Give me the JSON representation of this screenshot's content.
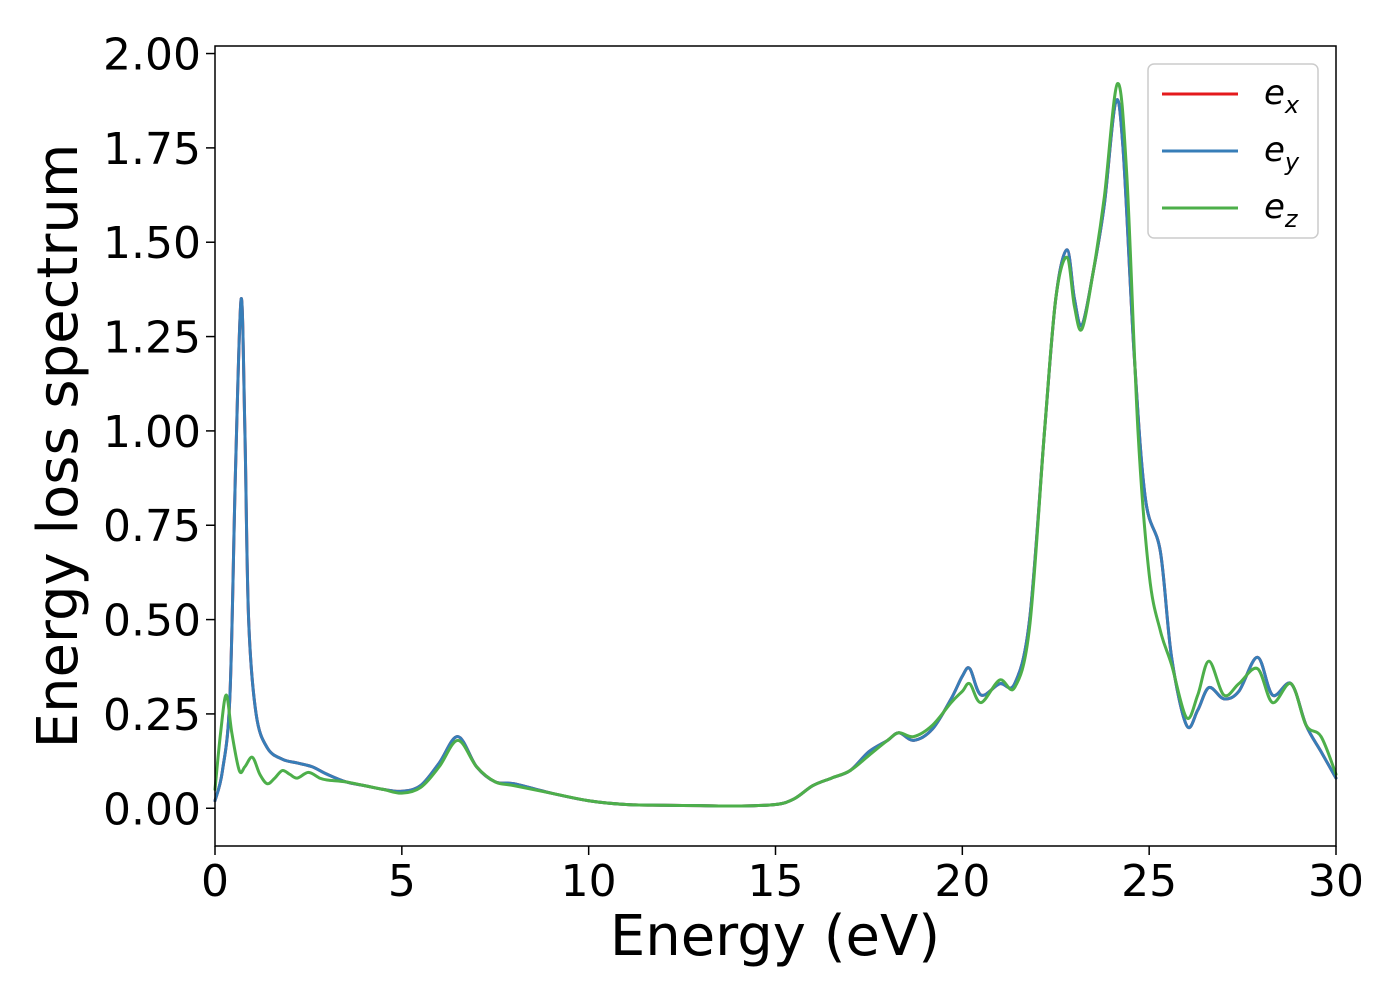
{
  "chart_data": {
    "type": "line",
    "xlabel": "Energy (eV)",
    "ylabel": "Energy loss spectrum",
    "xlim": [
      0,
      30
    ],
    "ylim": [
      -0.1,
      2.02
    ],
    "xticks": [
      "0",
      "5",
      "10",
      "15",
      "20",
      "25",
      "30"
    ],
    "yticks": [
      "0.00",
      "0.25",
      "0.50",
      "0.75",
      "1.00",
      "1.25",
      "1.50",
      "1.75",
      "2.00"
    ],
    "legend_position": "top-right",
    "grid": false,
    "series": [
      {
        "name": "e_x",
        "label_main": "e",
        "label_sub": "x",
        "color": "#e41a1c",
        "points": [
          [
            0,
            0.02
          ],
          [
            0.2,
            0.1
          ],
          [
            0.4,
            0.3
          ],
          [
            0.55,
            0.9
          ],
          [
            0.7,
            1.35
          ],
          [
            0.8,
            1.0
          ],
          [
            0.9,
            0.5
          ],
          [
            1.1,
            0.25
          ],
          [
            1.4,
            0.16
          ],
          [
            1.8,
            0.13
          ],
          [
            2.2,
            0.12
          ],
          [
            2.6,
            0.11
          ],
          [
            3.0,
            0.09
          ],
          [
            3.5,
            0.07
          ],
          [
            4.0,
            0.06
          ],
          [
            4.5,
            0.05
          ],
          [
            5.0,
            0.045
          ],
          [
            5.5,
            0.06
          ],
          [
            6.0,
            0.12
          ],
          [
            6.5,
            0.19
          ],
          [
            7.0,
            0.11
          ],
          [
            7.5,
            0.07
          ],
          [
            8.0,
            0.065
          ],
          [
            9.0,
            0.04
          ],
          [
            10.0,
            0.02
          ],
          [
            11.0,
            0.01
          ],
          [
            12.0,
            0.008
          ],
          [
            13.0,
            0.007
          ],
          [
            14.0,
            0.006
          ],
          [
            15.0,
            0.01
          ],
          [
            15.5,
            0.025
          ],
          [
            16.0,
            0.06
          ],
          [
            16.5,
            0.08
          ],
          [
            17.0,
            0.1
          ],
          [
            17.5,
            0.15
          ],
          [
            18.0,
            0.18
          ],
          [
            18.3,
            0.2
          ],
          [
            18.7,
            0.18
          ],
          [
            19.2,
            0.21
          ],
          [
            19.7,
            0.29
          ],
          [
            20.0,
            0.35
          ],
          [
            20.2,
            0.37
          ],
          [
            20.5,
            0.3
          ],
          [
            21.0,
            0.33
          ],
          [
            21.4,
            0.33
          ],
          [
            21.8,
            0.5
          ],
          [
            22.2,
            1.0
          ],
          [
            22.5,
            1.35
          ],
          [
            22.8,
            1.48
          ],
          [
            23.0,
            1.35
          ],
          [
            23.2,
            1.28
          ],
          [
            23.5,
            1.42
          ],
          [
            23.8,
            1.6
          ],
          [
            24.1,
            1.87
          ],
          [
            24.3,
            1.75
          ],
          [
            24.6,
            1.2
          ],
          [
            24.9,
            0.82
          ],
          [
            25.3,
            0.68
          ],
          [
            25.6,
            0.4
          ],
          [
            26.0,
            0.22
          ],
          [
            26.3,
            0.26
          ],
          [
            26.6,
            0.32
          ],
          [
            27.0,
            0.29
          ],
          [
            27.4,
            0.31
          ],
          [
            27.9,
            0.4
          ],
          [
            28.3,
            0.3
          ],
          [
            28.8,
            0.33
          ],
          [
            29.2,
            0.22
          ],
          [
            29.6,
            0.15
          ],
          [
            30.0,
            0.08
          ]
        ]
      },
      {
        "name": "e_y",
        "label_main": "e",
        "label_sub": "y",
        "color": "#377eb8",
        "points": [
          [
            0,
            0.02
          ],
          [
            0.2,
            0.1
          ],
          [
            0.4,
            0.3
          ],
          [
            0.55,
            0.9
          ],
          [
            0.7,
            1.35
          ],
          [
            0.8,
            1.0
          ],
          [
            0.9,
            0.5
          ],
          [
            1.1,
            0.25
          ],
          [
            1.4,
            0.16
          ],
          [
            1.8,
            0.13
          ],
          [
            2.2,
            0.12
          ],
          [
            2.6,
            0.11
          ],
          [
            3.0,
            0.09
          ],
          [
            3.5,
            0.07
          ],
          [
            4.0,
            0.06
          ],
          [
            4.5,
            0.05
          ],
          [
            5.0,
            0.045
          ],
          [
            5.5,
            0.06
          ],
          [
            6.0,
            0.12
          ],
          [
            6.5,
            0.19
          ],
          [
            7.0,
            0.11
          ],
          [
            7.5,
            0.07
          ],
          [
            8.0,
            0.065
          ],
          [
            9.0,
            0.04
          ],
          [
            10.0,
            0.02
          ],
          [
            11.0,
            0.01
          ],
          [
            12.0,
            0.008
          ],
          [
            13.0,
            0.007
          ],
          [
            14.0,
            0.006
          ],
          [
            15.0,
            0.01
          ],
          [
            15.5,
            0.025
          ],
          [
            16.0,
            0.06
          ],
          [
            16.5,
            0.08
          ],
          [
            17.0,
            0.1
          ],
          [
            17.5,
            0.15
          ],
          [
            18.0,
            0.18
          ],
          [
            18.3,
            0.2
          ],
          [
            18.7,
            0.18
          ],
          [
            19.2,
            0.21
          ],
          [
            19.7,
            0.29
          ],
          [
            20.0,
            0.35
          ],
          [
            20.2,
            0.37
          ],
          [
            20.5,
            0.3
          ],
          [
            21.0,
            0.33
          ],
          [
            21.4,
            0.33
          ],
          [
            21.8,
            0.5
          ],
          [
            22.2,
            1.0
          ],
          [
            22.5,
            1.35
          ],
          [
            22.8,
            1.48
          ],
          [
            23.0,
            1.35
          ],
          [
            23.2,
            1.28
          ],
          [
            23.5,
            1.42
          ],
          [
            23.8,
            1.6
          ],
          [
            24.1,
            1.87
          ],
          [
            24.3,
            1.75
          ],
          [
            24.6,
            1.2
          ],
          [
            24.9,
            0.82
          ],
          [
            25.3,
            0.68
          ],
          [
            25.6,
            0.4
          ],
          [
            26.0,
            0.22
          ],
          [
            26.3,
            0.26
          ],
          [
            26.6,
            0.32
          ],
          [
            27.0,
            0.29
          ],
          [
            27.4,
            0.31
          ],
          [
            27.9,
            0.4
          ],
          [
            28.3,
            0.3
          ],
          [
            28.8,
            0.33
          ],
          [
            29.2,
            0.22
          ],
          [
            29.6,
            0.15
          ],
          [
            30.0,
            0.08
          ]
        ]
      },
      {
        "name": "e_z",
        "label_main": "e",
        "label_sub": "z",
        "color": "#4daf4a",
        "points": [
          [
            0,
            0.05
          ],
          [
            0.15,
            0.2
          ],
          [
            0.3,
            0.3
          ],
          [
            0.45,
            0.2
          ],
          [
            0.65,
            0.1
          ],
          [
            0.8,
            0.11
          ],
          [
            1.0,
            0.135
          ],
          [
            1.2,
            0.09
          ],
          [
            1.4,
            0.065
          ],
          [
            1.6,
            0.08
          ],
          [
            1.8,
            0.1
          ],
          [
            2.0,
            0.09
          ],
          [
            2.2,
            0.08
          ],
          [
            2.5,
            0.095
          ],
          [
            2.8,
            0.08
          ],
          [
            3.0,
            0.075
          ],
          [
            3.5,
            0.07
          ],
          [
            4.0,
            0.06
          ],
          [
            4.5,
            0.05
          ],
          [
            5.0,
            0.04
          ],
          [
            5.5,
            0.055
          ],
          [
            6.0,
            0.11
          ],
          [
            6.5,
            0.18
          ],
          [
            7.0,
            0.11
          ],
          [
            7.5,
            0.07
          ],
          [
            8.0,
            0.06
          ],
          [
            9.0,
            0.04
          ],
          [
            10.0,
            0.02
          ],
          [
            11.0,
            0.01
          ],
          [
            12.0,
            0.008
          ],
          [
            13.0,
            0.007
          ],
          [
            14.0,
            0.006
          ],
          [
            15.0,
            0.01
          ],
          [
            15.5,
            0.025
          ],
          [
            16.0,
            0.06
          ],
          [
            16.5,
            0.08
          ],
          [
            17.0,
            0.1
          ],
          [
            17.5,
            0.14
          ],
          [
            18.0,
            0.18
          ],
          [
            18.3,
            0.2
          ],
          [
            18.7,
            0.19
          ],
          [
            19.2,
            0.22
          ],
          [
            19.7,
            0.28
          ],
          [
            20.0,
            0.31
          ],
          [
            20.2,
            0.33
          ],
          [
            20.5,
            0.28
          ],
          [
            21.0,
            0.34
          ],
          [
            21.4,
            0.32
          ],
          [
            21.8,
            0.48
          ],
          [
            22.2,
            1.0
          ],
          [
            22.5,
            1.35
          ],
          [
            22.8,
            1.46
          ],
          [
            23.0,
            1.33
          ],
          [
            23.2,
            1.27
          ],
          [
            23.5,
            1.42
          ],
          [
            23.8,
            1.62
          ],
          [
            24.15,
            1.92
          ],
          [
            24.4,
            1.68
          ],
          [
            24.7,
            1.0
          ],
          [
            25.0,
            0.62
          ],
          [
            25.3,
            0.47
          ],
          [
            25.6,
            0.38
          ],
          [
            26.0,
            0.24
          ],
          [
            26.3,
            0.3
          ],
          [
            26.6,
            0.39
          ],
          [
            27.0,
            0.3
          ],
          [
            27.4,
            0.33
          ],
          [
            27.9,
            0.37
          ],
          [
            28.3,
            0.28
          ],
          [
            28.8,
            0.33
          ],
          [
            29.2,
            0.22
          ],
          [
            29.6,
            0.19
          ],
          [
            30.0,
            0.09
          ]
        ]
      }
    ]
  }
}
